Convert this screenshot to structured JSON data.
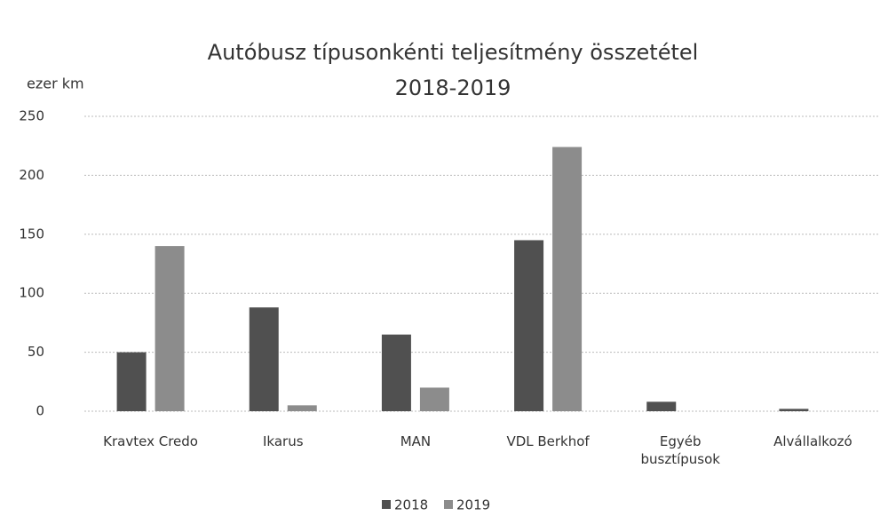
{
  "chart_data": {
    "type": "bar",
    "title": "Autóbusz típusonkénti teljesítmény összetétel",
    "subtitle": "2018-2019",
    "y_label": "ezer km",
    "categories": [
      "Kravtex Credo",
      "Ikarus",
      "MAN",
      "VDL Berkhof",
      "Egyéb busztípusok",
      "Alvállalkozó"
    ],
    "series": [
      {
        "name": "2018",
        "color": "#505050",
        "values": [
          50,
          88,
          65,
          145,
          8,
          2
        ]
      },
      {
        "name": "2019",
        "color": "#8c8c8c",
        "values": [
          140,
          5,
          20,
          224,
          0,
          0
        ]
      }
    ],
    "ylim": [
      0,
      250
    ],
    "yticks": [
      0,
      50,
      100,
      150,
      200,
      250
    ],
    "grid": true,
    "legend": "bottom"
  }
}
